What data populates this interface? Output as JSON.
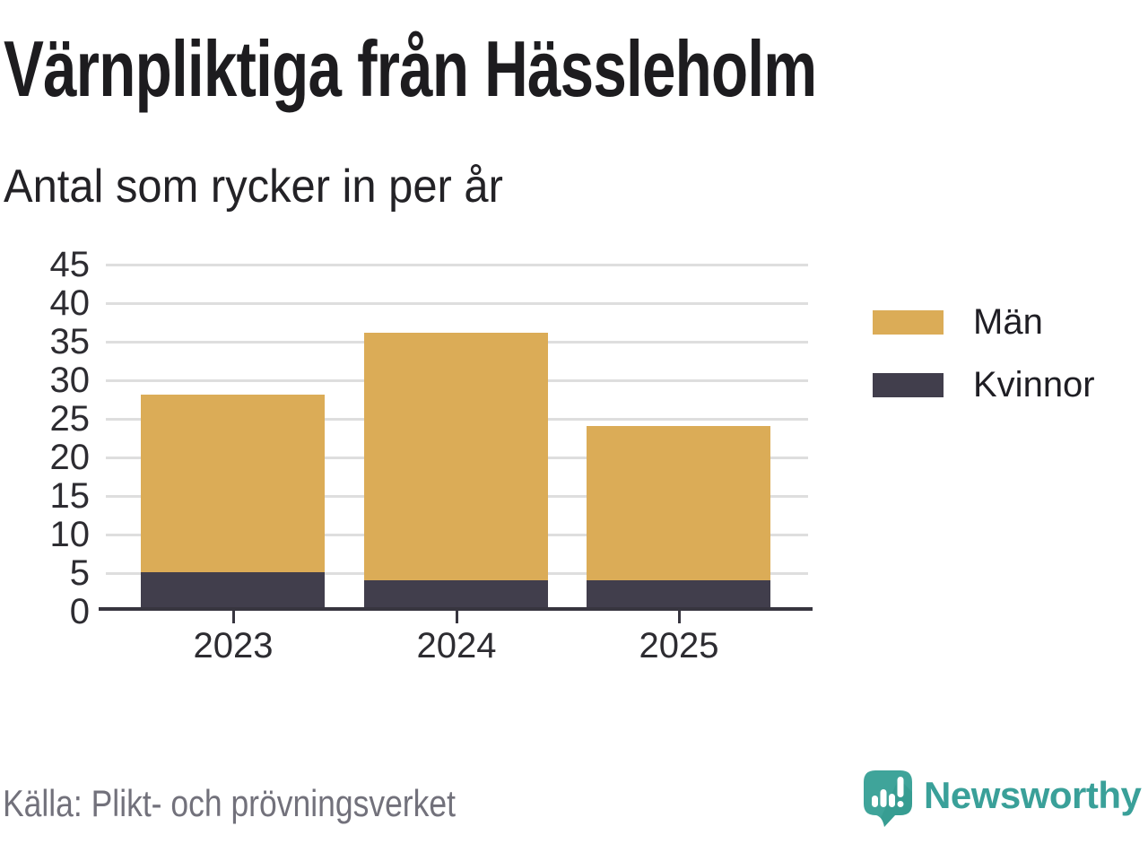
{
  "header": {
    "title": "Värnpliktiga från Hässleholm",
    "subtitle": "Antal som rycker in per år"
  },
  "chart_data": {
    "type": "bar",
    "stacked": true,
    "categories": [
      "2023",
      "2024",
      "2025"
    ],
    "series": [
      {
        "name": "Kvinnor",
        "color": "#413e4c",
        "values": [
          5,
          4,
          4
        ]
      },
      {
        "name": "Män",
        "color": "#dbac57",
        "values": [
          23,
          32,
          20
        ]
      }
    ],
    "totals": [
      28,
      36,
      24
    ],
    "ylim": [
      0,
      45
    ],
    "yticks": [
      0,
      5,
      10,
      15,
      20,
      25,
      30,
      35,
      40,
      45
    ],
    "grid": true,
    "legend_position": "right"
  },
  "legend": {
    "items": [
      {
        "label": "Män",
        "color": "#dbac57"
      },
      {
        "label": "Kvinnor",
        "color": "#413e4c"
      }
    ]
  },
  "footer": {
    "source": "Källa: Plikt- och prövningsverket",
    "brand": "Newsworthy"
  },
  "colors": {
    "men_gold": "#dbac57",
    "women_dark": "#413e4c",
    "gridline": "#dedede",
    "axis": "#37353f",
    "text_dark": "#2d2c31",
    "source_gray": "#72717b",
    "brand_teal": "#3aa099"
  }
}
